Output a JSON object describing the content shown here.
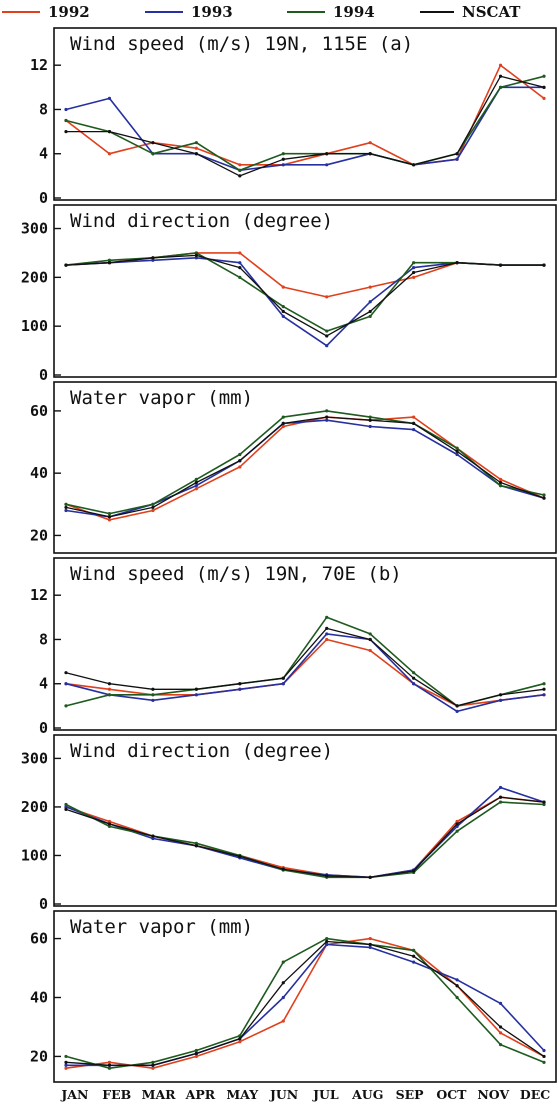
{
  "legend": [
    {
      "label": "1992",
      "color": "#e0401c"
    },
    {
      "label": "1993",
      "color": "#2630a0"
    },
    {
      "label": "1994",
      "color": "#1f5a1f"
    },
    {
      "label": "NSCAT",
      "color": "#111111"
    }
  ],
  "months": [
    "JAN",
    "FEB",
    "MAR",
    "APR",
    "MAY",
    "JUN",
    "JUL",
    "AUG",
    "SEP",
    "OCT",
    "NOV",
    "DEC"
  ],
  "chart_data": [
    {
      "type": "line",
      "title": "Wind speed (m/s)  19N, 115E  (a)",
      "ylim": [
        0,
        15
      ],
      "yticks": [
        "0",
        "4",
        "8",
        "12"
      ],
      "x": [
        "JAN",
        "FEB",
        "MAR",
        "APR",
        "MAY",
        "JUN",
        "JUL",
        "AUG",
        "SEP",
        "OCT",
        "NOV",
        "DEC"
      ],
      "series": [
        {
          "name": "1992",
          "values": [
            7,
            4,
            5,
            4.5,
            3,
            3,
            4,
            5,
            3,
            3.5,
            12,
            9
          ]
        },
        {
          "name": "1993",
          "values": [
            8,
            9,
            4,
            4,
            2.5,
            3,
            3,
            4,
            3,
            3.5,
            10,
            10
          ]
        },
        {
          "name": "1994",
          "values": [
            7,
            6,
            4,
            5,
            2.5,
            4,
            4,
            4,
            3,
            4,
            10,
            11
          ]
        },
        {
          "name": "NSCAT",
          "values": [
            6,
            6,
            5,
            4,
            2,
            3.5,
            4,
            4,
            3,
            4,
            11,
            10
          ]
        }
      ]
    },
    {
      "type": "line",
      "title": "Wind direction (degree)",
      "ylim": [
        0,
        340
      ],
      "yticks": [
        "0",
        "100",
        "200",
        "300"
      ],
      "x": [
        "JAN",
        "FEB",
        "MAR",
        "APR",
        "MAY",
        "JUN",
        "JUL",
        "AUG",
        "SEP",
        "OCT",
        "NOV",
        "DEC"
      ],
      "series": [
        {
          "name": "1992",
          "values": [
            225,
            230,
            240,
            250,
            250,
            180,
            160,
            180,
            200,
            230,
            225,
            225
          ]
        },
        {
          "name": "1993",
          "values": [
            225,
            230,
            235,
            240,
            230,
            120,
            60,
            150,
            220,
            230,
            225,
            225
          ]
        },
        {
          "name": "1994",
          "values": [
            225,
            235,
            240,
            250,
            200,
            140,
            90,
            120,
            230,
            230,
            225,
            225
          ]
        },
        {
          "name": "NSCAT",
          "values": [
            225,
            230,
            240,
            245,
            220,
            130,
            80,
            130,
            210,
            230,
            225,
            225
          ]
        }
      ]
    },
    {
      "type": "line",
      "title": "Water vapor (mm)",
      "ylim": [
        15,
        68
      ],
      "yticks": [
        "20",
        "40",
        "60"
      ],
      "x": [
        "JAN",
        "FEB",
        "MAR",
        "APR",
        "MAY",
        "JUN",
        "JUL",
        "AUG",
        "SEP",
        "OCT",
        "NOV",
        "DEC"
      ],
      "series": [
        {
          "name": "1992",
          "values": [
            30,
            25,
            28,
            35,
            42,
            55,
            58,
            57,
            58,
            48,
            38,
            32
          ]
        },
        {
          "name": "1993",
          "values": [
            28,
            26,
            30,
            36,
            44,
            56,
            57,
            55,
            54,
            46,
            36,
            32
          ]
        },
        {
          "name": "1994",
          "values": [
            30,
            27,
            30,
            38,
            46,
            58,
            60,
            58,
            56,
            48,
            36,
            33
          ]
        },
        {
          "name": "NSCAT",
          "values": [
            29,
            26,
            29,
            37,
            44,
            56,
            58,
            57,
            56,
            47,
            37,
            32
          ]
        }
      ]
    },
    {
      "type": "line",
      "title": "Wind speed (m/s)  19N, 70E  (b)",
      "ylim": [
        0,
        15
      ],
      "yticks": [
        "0",
        "4",
        "8",
        "12"
      ],
      "x": [
        "JAN",
        "FEB",
        "MAR",
        "APR",
        "MAY",
        "JUN",
        "JUL",
        "AUG",
        "SEP",
        "OCT",
        "NOV",
        "DEC"
      ],
      "series": [
        {
          "name": "1992",
          "values": [
            4,
            3.5,
            3,
            3,
            3.5,
            4,
            8,
            7,
            4,
            2,
            2.5,
            3
          ]
        },
        {
          "name": "1993",
          "values": [
            4,
            3,
            2.5,
            3,
            3.5,
            4,
            8.5,
            8,
            4,
            1.5,
            2.5,
            3
          ]
        },
        {
          "name": "1994",
          "values": [
            2,
            3,
            3,
            3.5,
            4,
            4.5,
            10,
            8.5,
            5,
            2,
            3,
            4
          ]
        },
        {
          "name": "NSCAT",
          "values": [
            5,
            4,
            3.5,
            3.5,
            4,
            4.5,
            9,
            8,
            4.5,
            2,
            3,
            3.5
          ]
        }
      ]
    },
    {
      "type": "line",
      "title": "Wind direction (degree)",
      "ylim": [
        0,
        340
      ],
      "yticks": [
        "0",
        "100",
        "200",
        "300"
      ],
      "x": [
        "JAN",
        "FEB",
        "MAR",
        "APR",
        "MAY",
        "JUN",
        "JUL",
        "AUG",
        "SEP",
        "OCT",
        "NOV",
        "DEC"
      ],
      "series": [
        {
          "name": "1992",
          "values": [
            200,
            170,
            140,
            120,
            100,
            75,
            60,
            55,
            70,
            170,
            220,
            210
          ]
        },
        {
          "name": "1993",
          "values": [
            200,
            165,
            135,
            120,
            95,
            70,
            60,
            55,
            70,
            160,
            240,
            210
          ]
        },
        {
          "name": "1994",
          "values": [
            205,
            160,
            140,
            125,
            100,
            70,
            55,
            55,
            65,
            150,
            210,
            205
          ]
        },
        {
          "name": "NSCAT",
          "values": [
            195,
            165,
            140,
            120,
            98,
            72,
            58,
            55,
            68,
            165,
            220,
            210
          ]
        }
      ]
    },
    {
      "type": "line",
      "title": "Water vapor (mm)",
      "ylim": [
        12,
        68
      ],
      "yticks": [
        "20",
        "40",
        "60"
      ],
      "x": [
        "JAN",
        "FEB",
        "MAR",
        "APR",
        "MAY",
        "JUN",
        "JUL",
        "AUG",
        "SEP",
        "OCT",
        "NOV",
        "DEC"
      ],
      "series": [
        {
          "name": "1992",
          "values": [
            16,
            18,
            16,
            20,
            25,
            32,
            58,
            60,
            56,
            44,
            28,
            20
          ]
        },
        {
          "name": "1993",
          "values": [
            17,
            17,
            17,
            21,
            26,
            40,
            58,
            57,
            52,
            46,
            38,
            22
          ]
        },
        {
          "name": "1994",
          "values": [
            20,
            16,
            18,
            22,
            27,
            52,
            60,
            58,
            56,
            40,
            24,
            18
          ]
        },
        {
          "name": "NSCAT",
          "values": [
            18,
            17,
            17,
            21,
            26,
            45,
            59,
            58,
            54,
            44,
            30,
            20
          ]
        }
      ]
    }
  ]
}
